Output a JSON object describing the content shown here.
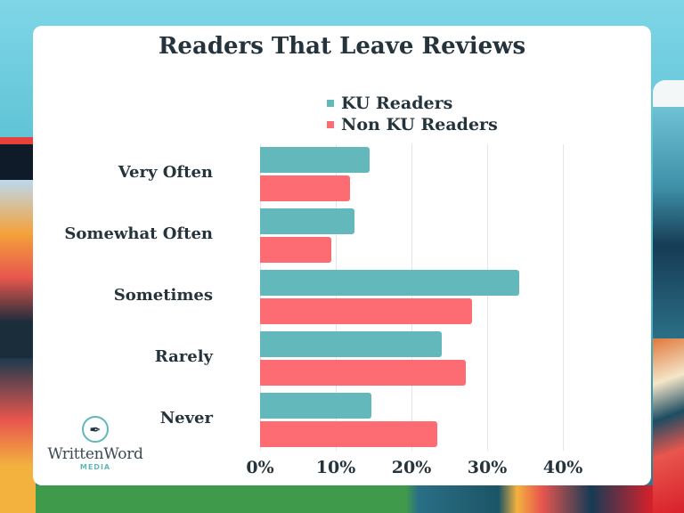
{
  "chart_data": {
    "type": "bar",
    "orientation": "horizontal",
    "title": "Readers That Leave Reviews",
    "categories": [
      "Very Often",
      "Somewhat Often",
      "Sometimes",
      "Rarely",
      "Never"
    ],
    "series": [
      {
        "name": "KU Readers",
        "color": "#63b8bb",
        "values": [
          14.5,
          12.5,
          34.2,
          24.0,
          14.7
        ]
      },
      {
        "name": "Non KU Readers",
        "color": "#fd6b73",
        "values": [
          11.9,
          9.4,
          28.0,
          27.2,
          23.4
        ]
      }
    ],
    "xlabel": "",
    "ylabel": "",
    "xlim": [
      0,
      40
    ],
    "xticks": [
      "0%",
      "10%",
      "20%",
      "30%",
      "40%"
    ],
    "grid": true,
    "legend_position": "top"
  },
  "legend": {
    "items": [
      {
        "label": "KU Readers",
        "color": "#63b8bb"
      },
      {
        "label": "Non KU Readers",
        "color": "#fd6b73"
      }
    ]
  },
  "branding": {
    "logo_name": "WrittenWord",
    "logo_sub": "MEDIA",
    "logo_icon": "pen-nib-icon"
  }
}
